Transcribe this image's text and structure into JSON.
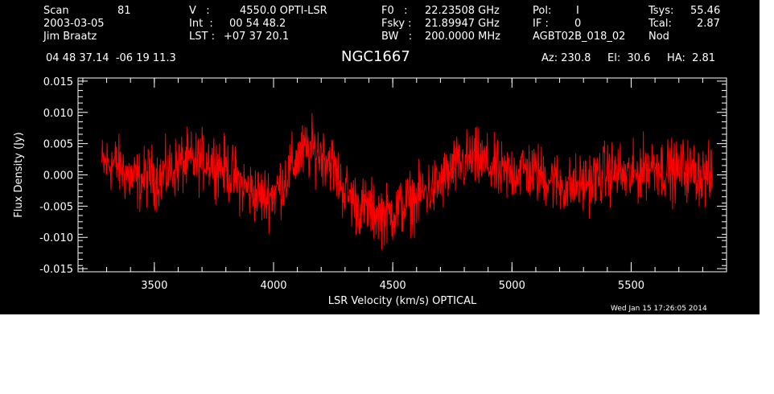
{
  "header": {
    "scan_label": "Scan",
    "scan_value": "81",
    "date": "2003-03-05",
    "observer": "Jim Braatz",
    "v_label": "V   :",
    "v_value": "4550.0 OPTI-LSR",
    "int_label": "Int  :",
    "int_value": "00 54 48.2",
    "lst_label": "LST :",
    "lst_value": "+07 37 20.1",
    "f0_label": "F0   :",
    "f0_value": "22.23508 GHz",
    "fsky_label": "Fsky :",
    "fsky_value": "21.89947 GHz",
    "bw_label": "BW   :",
    "bw_value": "200.0000 MHz",
    "pol_label": "Pol:",
    "pol_value": "I",
    "if_label": "IF :",
    "if_value": "0",
    "project": "AGBT02B_018_02",
    "tsys_label": "Tsys:",
    "tsys_value": "55.46",
    "tcal_label": "Tcal:",
    "tcal_value": "2.87",
    "mode": "Nod",
    "coords": "04 48 37.14  -06 19 11.3",
    "az": "Az: 230.8",
    "el": "El:  30.6",
    "ha": "HA:  2.81"
  },
  "timestamp": "Wed Jan 15 17:26:05 2014",
  "chart_data": {
    "type": "line",
    "title": "NGC1667",
    "xlabel": "LSR Velocity (km/s) OPTICAL",
    "ylabel": "Flux Density (Jy)",
    "xlim": [
      3180,
      5900
    ],
    "ylim": [
      -0.0155,
      0.0155
    ],
    "xticks": [
      3500,
      4000,
      4500,
      5000,
      5500
    ],
    "xtick_labels": [
      "3500",
      "4000",
      "4500",
      "5000",
      "5500"
    ],
    "yticks": [
      0.015,
      0.01,
      0.005,
      0.0,
      -0.005,
      -0.01,
      -0.015
    ],
    "ytick_labels": [
      "0.015",
      "0.010",
      "0.005",
      "0.000",
      "-0.005",
      "-0.010",
      "-0.015"
    ],
    "grid": false,
    "series": [
      {
        "color": "#ff0000",
        "x": [
          3280,
          3320,
          3360,
          3400,
          3440,
          3480,
          3520,
          3560,
          3600,
          3640,
          3680,
          3720,
          3760,
          3800,
          3840,
          3880,
          3920,
          3960,
          4000,
          4040,
          4080,
          4120,
          4160,
          4200,
          4240,
          4280,
          4320,
          4360,
          4400,
          4440,
          4480,
          4520,
          4560,
          4600,
          4640,
          4680,
          4720,
          4760,
          4800,
          4840,
          4880,
          4920,
          4960,
          5000,
          5040,
          5080,
          5120,
          5160,
          5200,
          5240,
          5280,
          5320,
          5360,
          5400,
          5440,
          5480,
          5520,
          5560,
          5600,
          5640,
          5680,
          5720,
          5760,
          5800,
          5840
        ],
        "y": [
          0.0015,
          0.002,
          0.001,
          -0.0005,
          -0.001,
          0.0,
          -0.0005,
          0.0005,
          0.0015,
          0.002,
          0.002,
          0.0025,
          0.002,
          0.001,
          -0.0005,
          -0.002,
          -0.003,
          -0.0035,
          -0.003,
          -0.001,
          0.0015,
          0.0035,
          0.004,
          0.0035,
          0.0025,
          -0.0015,
          -0.0035,
          -0.005,
          -0.0055,
          -0.006,
          -0.0065,
          -0.0055,
          -0.0045,
          -0.004,
          -0.0025,
          -0.002,
          -0.0005,
          0.001,
          0.002,
          0.0025,
          0.002,
          0.001,
          0.0,
          0.0005,
          0.001,
          0.0005,
          0.0,
          -0.0005,
          -0.0015,
          -0.002,
          -0.0015,
          -0.001,
          -0.0005,
          0.0005,
          0.0005,
          -0.0005,
          0.0,
          0.0015,
          0.0015,
          0.001,
          0.0005,
          0.001,
          0.0005,
          0.0,
          -0.0005
        ]
      }
    ]
  }
}
